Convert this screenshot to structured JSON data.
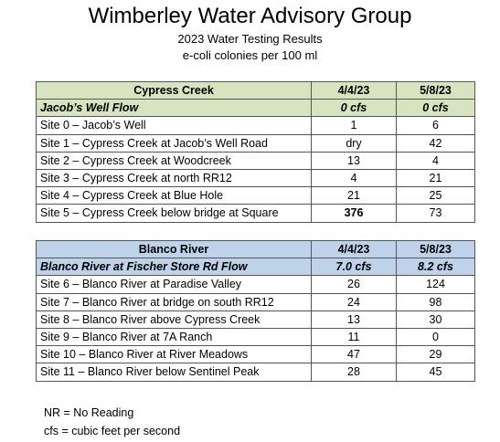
{
  "header": {
    "title": "Wimberley Water Advisory Group",
    "subtitle": "2023 Water Testing Results",
    "units": "e-coli colonies per 100 ml"
  },
  "tables": [
    {
      "name": "Cypress Creek",
      "dates": [
        "4/4/23",
        "5/8/23"
      ],
      "flow_label": "Jacob’s Well Flow",
      "flows": [
        "0 cfs",
        "0 cfs"
      ],
      "rows": [
        {
          "site": "Site 0 – Jacob’s Well",
          "v1": "1",
          "v2": "6"
        },
        {
          "site": "Site 1 – Cypress Creek at Jacob’s Well Road",
          "v1": "dry",
          "v2": "42"
        },
        {
          "site": "Site 2 – Cypress Creek at Woodcreek",
          "v1": "13",
          "v2": "4"
        },
        {
          "site": "Site 3 – Cypress Creek at north RR12",
          "v1": "4",
          "v2": "21"
        },
        {
          "site": "Site 4 – Cypress Creek at Blue Hole",
          "v1": "21",
          "v2": "25"
        },
        {
          "site": "Site 5 – Cypress Creek below bridge at Square",
          "v1": "376",
          "v2": "73"
        }
      ]
    },
    {
      "name": "Blanco River",
      "dates": [
        "4/4/23",
        "5/8/23"
      ],
      "flow_label": "Blanco River at Fischer Store Rd Flow",
      "flows": [
        "7.0 cfs",
        "8.2 cfs"
      ],
      "rows": [
        {
          "site": "Site 6 – Blanco River at Paradise Valley",
          "v1": "26",
          "v2": "124"
        },
        {
          "site": "Site 7 – Blanco River at bridge on south RR12",
          "v1": "24",
          "v2": "98"
        },
        {
          "site": "Site 8 – Blanco River above Cypress Creek",
          "v1": "13",
          "v2": "30"
        },
        {
          "site": "Site 9 – Blanco River at 7A Ranch",
          "v1": "11",
          "v2": "0"
        },
        {
          "site": "Site 10 – Blanco River at River Meadows",
          "v1": "47",
          "v2": "29"
        },
        {
          "site": "Site 11 – Blanco River below Sentinel Peak",
          "v1": "28",
          "v2": "45"
        }
      ]
    }
  ],
  "notes": [
    "NR = No Reading",
    "cfs = cubic feet per second"
  ],
  "colors": {
    "cypress_header": "#d6e5bf",
    "blanco_header": "#bed2ea",
    "border": "#555555"
  }
}
